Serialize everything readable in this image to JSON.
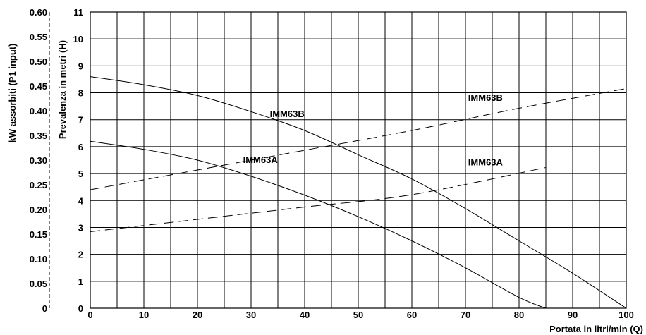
{
  "chart_data": {
    "type": "line",
    "xlabel": "Portata in litri/min (Q)",
    "ylabel": "Prevalenza in metri (H)",
    "y2label": "kW assorbiti (P1 input)",
    "xlim": [
      0,
      100
    ],
    "ylim": [
      0,
      11
    ],
    "y2lim": [
      0,
      0.6
    ],
    "xticks": [
      "0",
      "10",
      "20",
      "30",
      "40",
      "50",
      "60",
      "70",
      "80",
      "90",
      "100"
    ],
    "yticks": [
      "0",
      "1",
      "2",
      "3",
      "4",
      "5",
      "6",
      "7",
      "8",
      "9",
      "10",
      "11"
    ],
    "y2ticks": [
      "0",
      "0.05",
      "0.10",
      "0.15",
      "0.20",
      "0.25",
      "0.30",
      "0.35",
      "0.40",
      "0.45",
      "0.50",
      "0.55",
      "0.60"
    ],
    "grid": {
      "x_step": 5,
      "y_step": 1
    },
    "series": [
      {
        "name": "IMM63B",
        "kind": "head",
        "style": "solid",
        "x": [
          0,
          10,
          20,
          30,
          40,
          50,
          60,
          70,
          80,
          90,
          100
        ],
        "y": [
          8.6,
          8.3,
          7.9,
          7.3,
          6.6,
          5.7,
          4.8,
          3.7,
          2.5,
          1.3,
          0
        ]
      },
      {
        "name": "IMM63A",
        "kind": "head",
        "style": "solid",
        "x": [
          0,
          10,
          20,
          30,
          40,
          50,
          60,
          70,
          80,
          85
        ],
        "y": [
          6.2,
          5.9,
          5.5,
          4.9,
          4.2,
          3.4,
          2.5,
          1.5,
          0.4,
          0
        ]
      },
      {
        "name": "IMM63B",
        "kind": "power",
        "style": "dashed",
        "x": [
          0,
          20,
          40,
          60,
          80,
          100
        ],
        "y2": [
          0.24,
          0.28,
          0.32,
          0.36,
          0.405,
          0.445
        ]
      },
      {
        "name": "IMM63A",
        "kind": "power",
        "style": "dashed",
        "x": [
          0,
          20,
          40,
          60,
          85
        ],
        "y2": [
          0.155,
          0.18,
          0.205,
          0.23,
          0.285
        ]
      }
    ],
    "annotations": [
      {
        "text": "IMM63B",
        "x": 33.5,
        "y": 7.1
      },
      {
        "text": "IMM63A",
        "x": 28.5,
        "y": 5.4
      },
      {
        "text": "IMM63B",
        "x": 70.5,
        "y": 7.7
      },
      {
        "text": "IMM63A",
        "x": 70.5,
        "y": 5.3
      }
    ]
  }
}
